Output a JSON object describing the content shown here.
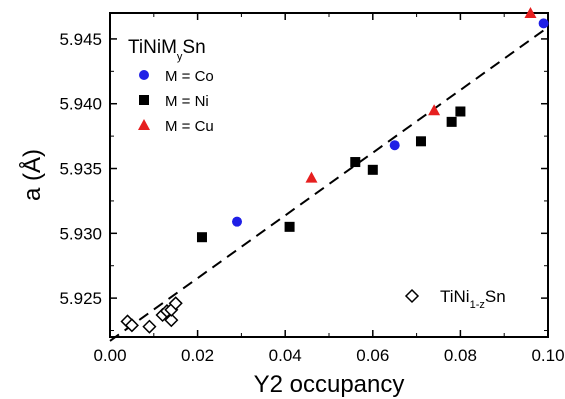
{
  "chart_data": {
    "type": "scatter",
    "xlabel": "Y2 occupancy",
    "ylabel": "a (Å)",
    "xlim": [
      0.0,
      0.1
    ],
    "ylim": [
      5.922,
      5.947
    ],
    "xticks": [
      0.0,
      0.02,
      0.04,
      0.06,
      0.08,
      0.1
    ],
    "xtick_labels": [
      "0.00",
      "0.02",
      "0.04",
      "0.06",
      "0.08",
      "0.10"
    ],
    "yticks": [
      5.925,
      5.93,
      5.935,
      5.94,
      5.945
    ],
    "ytick_labels": [
      "5.925",
      "5.930",
      "5.935",
      "5.940",
      "5.945"
    ],
    "grid": false,
    "legend": {
      "title": {
        "base": "TiNiM",
        "sub": "y",
        "tail": "Sn"
      },
      "placement": "top-left",
      "bottom_entry": {
        "base": "TiNi",
        "sub": "1-z",
        "tail": "Sn",
        "placement": "bottom-right"
      }
    },
    "series": [
      {
        "name": "M = Co",
        "marker": "circle",
        "color": "#1f1fe6",
        "x": [
          0.029,
          0.065,
          0.099
        ],
        "y": [
          5.9309,
          5.9368,
          5.9462
        ]
      },
      {
        "name": "M = Ni",
        "marker": "square",
        "color": "#000000",
        "x": [
          0.021,
          0.041,
          0.056,
          0.06,
          0.071,
          0.078,
          0.08
        ],
        "y": [
          5.9297,
          5.9305,
          5.9355,
          5.9349,
          5.9371,
          5.9386,
          5.9394
        ]
      },
      {
        "name": "M = Cu",
        "marker": "triangle",
        "color": "#e61f1f",
        "x": [
          0.046,
          0.074,
          0.096
        ],
        "y": [
          5.9343,
          5.9395,
          5.947
        ]
      },
      {
        "name": "TiNi1-zSn",
        "marker": "diamond-open",
        "color": "#000000",
        "x": [
          0.004,
          0.005,
          0.009,
          0.012,
          0.013,
          0.014,
          0.014,
          0.015
        ],
        "y": [
          5.9232,
          5.9229,
          5.9228,
          5.9237,
          5.924,
          5.9233,
          5.9241,
          5.9246
        ]
      }
    ],
    "fit_line": {
      "style": "dashed",
      "x": [
        0.0,
        0.1
      ],
      "y": [
        5.9217,
        5.9459
      ]
    }
  }
}
